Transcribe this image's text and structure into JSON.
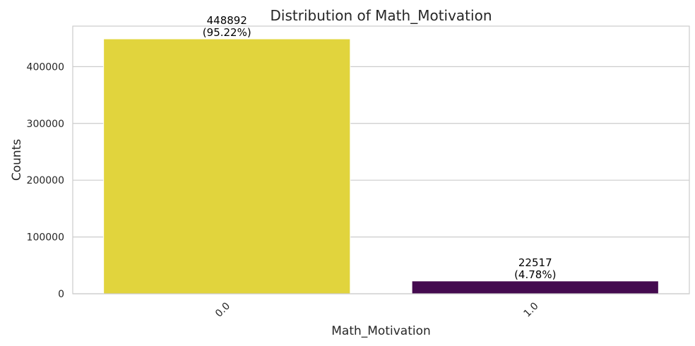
{
  "chart_data": {
    "type": "bar",
    "title": "Distribution of Math_Motivation",
    "xlabel": "Math_Motivation",
    "ylabel": "Counts",
    "categories": [
      "0.0",
      "1.0"
    ],
    "values": [
      448892,
      22517
    ],
    "data_labels": [
      [
        "448892",
        "(95.22%)"
      ],
      [
        "22517",
        "(4.78%)"
      ]
    ],
    "colors": [
      "#e1d43d",
      "#440a4f"
    ],
    "ylim": [
      0,
      471337
    ],
    "yticks": [
      0,
      100000,
      200000,
      300000,
      400000
    ],
    "ytick_labels": [
      "0",
      "100000",
      "200000",
      "300000",
      "400000"
    ],
    "grid": true,
    "legend": "none"
  }
}
